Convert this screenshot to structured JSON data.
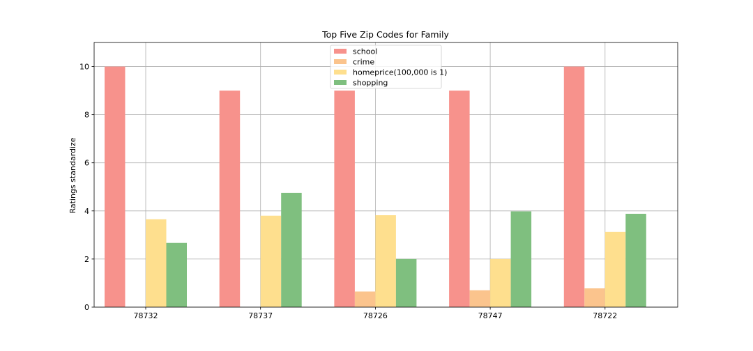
{
  "chart_data": {
    "type": "bar",
    "title": "Top Five Zip Codes for Family",
    "xlabel": "",
    "ylabel": "Ratings standardize",
    "categories": [
      "78732",
      "78737",
      "78726",
      "78747",
      "78722"
    ],
    "series": [
      {
        "name": "school",
        "values": [
          10,
          9,
          9,
          9,
          10
        ],
        "color": "#f7928c"
      },
      {
        "name": "crime",
        "values": [
          0,
          0,
          0.65,
          0.7,
          0.78
        ],
        "color": "#fbc48d"
      },
      {
        "name": "homeprice(100,000 is 1)",
        "values": [
          3.65,
          3.8,
          3.82,
          2.0,
          3.13
        ],
        "color": "#fedf8e"
      },
      {
        "name": "shopping",
        "values": [
          2.67,
          4.75,
          2.0,
          3.98,
          3.88
        ],
        "color": "#7fbf7f"
      }
    ],
    "ylim": [
      0,
      11
    ],
    "yticks": [
      0,
      2,
      4,
      6,
      8,
      10
    ],
    "grid": true,
    "legend_position": "top-center"
  }
}
